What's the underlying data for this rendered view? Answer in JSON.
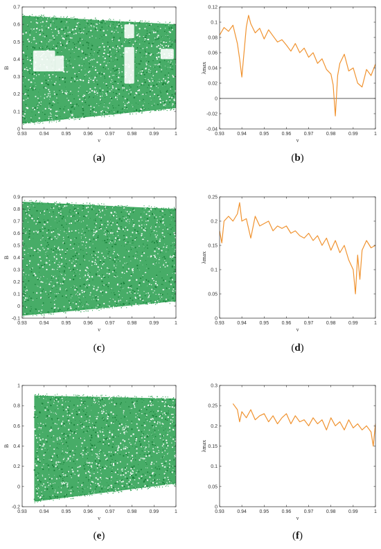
{
  "chart_data": [
    {
      "id": "a",
      "type": "scatter",
      "panel_label": "a",
      "xlabel": "ν",
      "ylabel": "B",
      "xlim": [
        0.93,
        1.0
      ],
      "ylim": [
        0,
        0.7
      ],
      "xticks": [
        "0.93",
        "0.94",
        "0.95",
        "0.96",
        "0.97",
        "0.98",
        "0.99",
        "1"
      ],
      "yticks": [
        "0",
        "0.1",
        "0.2",
        "0.3",
        "0.4",
        "0.5",
        "0.6",
        "0.7"
      ],
      "color": "#1f9a46",
      "grid": false,
      "envelope": {
        "x": [
          0.93,
          1.0
        ],
        "lower": [
          0.03,
          0.12
        ],
        "upper": [
          0.65,
          0.6
        ]
      },
      "gaps": [
        [
          0.935,
          0.945,
          0.33,
          0.45
        ],
        [
          0.945,
          0.949,
          0.33,
          0.42
        ],
        [
          0.9765,
          0.981,
          0.26,
          0.47
        ],
        [
          0.9765,
          0.981,
          0.52,
          0.6
        ],
        [
          0.993,
          0.999,
          0.4,
          0.46
        ]
      ]
    },
    {
      "id": "b",
      "type": "line",
      "panel_label": "b",
      "xlabel": "ν",
      "ylabel": "λmax",
      "xlim": [
        0.93,
        1.0
      ],
      "ylim": [
        -0.04,
        0.12
      ],
      "xticks": [
        "0.93",
        "0.94",
        "0.95",
        "0.96",
        "0.97",
        "0.98",
        "0.99",
        "1"
      ],
      "yticks": [
        "-0.04",
        "-0.02",
        "0",
        "0.02",
        "0.04",
        "0.06",
        "0.08",
        "0.1",
        "0.12"
      ],
      "zero_line": true,
      "color": "#f0922e",
      "grid": false,
      "x": [
        0.93,
        0.932,
        0.934,
        0.936,
        0.938,
        0.939,
        0.94,
        0.942,
        0.943,
        0.944,
        0.946,
        0.948,
        0.95,
        0.952,
        0.954,
        0.956,
        0.958,
        0.96,
        0.962,
        0.964,
        0.966,
        0.968,
        0.97,
        0.972,
        0.974,
        0.976,
        0.978,
        0.98,
        0.981,
        0.982,
        0.983,
        0.984,
        0.986,
        0.988,
        0.99,
        0.992,
        0.994,
        0.996,
        0.998,
        1.0
      ],
      "y": [
        0.083,
        0.093,
        0.088,
        0.096,
        0.072,
        0.052,
        0.028,
        0.094,
        0.109,
        0.098,
        0.086,
        0.092,
        0.078,
        0.09,
        0.082,
        0.074,
        0.077,
        0.07,
        0.062,
        0.072,
        0.06,
        0.066,
        0.054,
        0.06,
        0.046,
        0.052,
        0.038,
        0.032,
        0.018,
        -0.023,
        0.03,
        0.046,
        0.058,
        0.036,
        0.04,
        0.02,
        0.015,
        0.038,
        0.03,
        0.045
      ]
    },
    {
      "id": "c",
      "type": "scatter",
      "panel_label": "c",
      "xlabel": "ν",
      "ylabel": "B",
      "xlim": [
        0.93,
        1.0
      ],
      "ylim": [
        -0.1,
        0.9
      ],
      "xticks": [
        "0.93",
        "0.94",
        "0.95",
        "0.96",
        "0.97",
        "0.98",
        "0.99",
        "1"
      ],
      "yticks": [
        "-0.1",
        "0",
        "0.1",
        "0.2",
        "0.3",
        "0.4",
        "0.5",
        "0.6",
        "0.7",
        "0.8",
        "0.9"
      ],
      "color": "#1f9a46",
      "grid": false,
      "envelope": {
        "x": [
          0.93,
          1.0
        ],
        "lower": [
          -0.08,
          0.04
        ],
        "upper": [
          0.86,
          0.8
        ]
      },
      "gaps": []
    },
    {
      "id": "d",
      "type": "line",
      "panel_label": "d",
      "xlabel": "ν",
      "ylabel": "λmax",
      "xlim": [
        0.93,
        1.0
      ],
      "ylim": [
        0,
        0.25
      ],
      "xticks": [
        "0.93",
        "0.94",
        "0.95",
        "0.96",
        "0.97",
        "0.98",
        "0.99",
        "1"
      ],
      "yticks": [
        "0",
        "0.05",
        "0.1",
        "0.15",
        "0.2",
        "0.25"
      ],
      "zero_line": false,
      "color": "#f0922e",
      "grid": false,
      "x": [
        0.93,
        0.931,
        0.932,
        0.934,
        0.936,
        0.938,
        0.939,
        0.94,
        0.942,
        0.944,
        0.946,
        0.948,
        0.95,
        0.952,
        0.954,
        0.956,
        0.958,
        0.96,
        0.962,
        0.964,
        0.966,
        0.968,
        0.97,
        0.972,
        0.974,
        0.976,
        0.978,
        0.98,
        0.982,
        0.984,
        0.986,
        0.988,
        0.99,
        0.991,
        0.992,
        0.993,
        0.994,
        0.996,
        0.998,
        1.0
      ],
      "y": [
        0.18,
        0.155,
        0.2,
        0.21,
        0.2,
        0.215,
        0.238,
        0.2,
        0.205,
        0.165,
        0.21,
        0.19,
        0.195,
        0.2,
        0.18,
        0.19,
        0.185,
        0.19,
        0.175,
        0.18,
        0.17,
        0.165,
        0.175,
        0.16,
        0.17,
        0.15,
        0.165,
        0.14,
        0.16,
        0.135,
        0.15,
        0.12,
        0.1,
        0.05,
        0.13,
        0.08,
        0.14,
        0.16,
        0.145,
        0.15
      ]
    },
    {
      "id": "e",
      "type": "scatter",
      "panel_label": "e",
      "xlabel": "ν",
      "ylabel": "B",
      "xlim": [
        0.93,
        1.0
      ],
      "ylim": [
        -0.2,
        1.0
      ],
      "xticks": [
        "0.93",
        "0.94",
        "0.95",
        "0.96",
        "0.97",
        "0.98",
        "0.99",
        "1"
      ],
      "yticks": [
        "-0.2",
        "0",
        "0.2",
        "0.4",
        "0.6",
        "0.8",
        "1"
      ],
      "color": "#1f9a46",
      "grid": false,
      "envelope": {
        "x": [
          0.9355,
          1.0
        ],
        "lower": [
          -0.15,
          0.03
        ],
        "upper": [
          0.9,
          0.87
        ]
      },
      "gaps": []
    },
    {
      "id": "f",
      "type": "line",
      "panel_label": "f",
      "xlabel": "ν",
      "ylabel": "λmax",
      "xlim": [
        0.93,
        1.0
      ],
      "ylim": [
        0,
        0.3
      ],
      "xticks": [
        "0.93",
        "0.94",
        "0.95",
        "0.96",
        "0.97",
        "0.98",
        "0.99",
        "1"
      ],
      "yticks": [
        "0",
        "0.05",
        "0.1",
        "0.15",
        "0.2",
        "0.25",
        "0.3"
      ],
      "zero_line": false,
      "color": "#f0922e",
      "grid": false,
      "x": [
        0.936,
        0.938,
        0.939,
        0.94,
        0.942,
        0.944,
        0.946,
        0.948,
        0.95,
        0.952,
        0.954,
        0.956,
        0.958,
        0.96,
        0.962,
        0.964,
        0.966,
        0.968,
        0.97,
        0.972,
        0.974,
        0.976,
        0.978,
        0.98,
        0.982,
        0.984,
        0.986,
        0.988,
        0.99,
        0.992,
        0.994,
        0.996,
        0.998,
        0.999,
        1.0
      ],
      "y": [
        0.255,
        0.24,
        0.21,
        0.235,
        0.22,
        0.24,
        0.215,
        0.225,
        0.23,
        0.21,
        0.225,
        0.205,
        0.22,
        0.23,
        0.205,
        0.225,
        0.21,
        0.215,
        0.2,
        0.22,
        0.205,
        0.215,
        0.19,
        0.22,
        0.2,
        0.21,
        0.19,
        0.215,
        0.195,
        0.205,
        0.19,
        0.2,
        0.185,
        0.15,
        0.205
      ]
    }
  ]
}
